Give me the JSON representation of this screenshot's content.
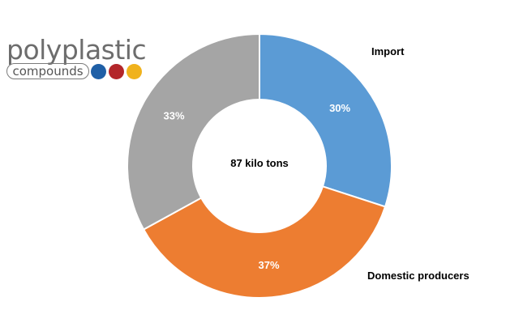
{
  "logo": {
    "word": "polyplastic",
    "sub": "compounds",
    "dots": [
      "#1f5fa6",
      "#b3262a",
      "#f0b21c"
    ]
  },
  "chart_data": {
    "type": "pie",
    "donut": true,
    "center_text": "87 kilo tons",
    "slices": [
      {
        "name": "Import",
        "value": 30,
        "label": "30%",
        "color": "#5b9bd5"
      },
      {
        "name": "Domestic producers",
        "value": 37,
        "label": "37%",
        "color": "#ed7d31"
      },
      {
        "name": "",
        "value": 33,
        "label": "33%",
        "color": "#a5a5a5"
      }
    ],
    "legend": "none"
  }
}
